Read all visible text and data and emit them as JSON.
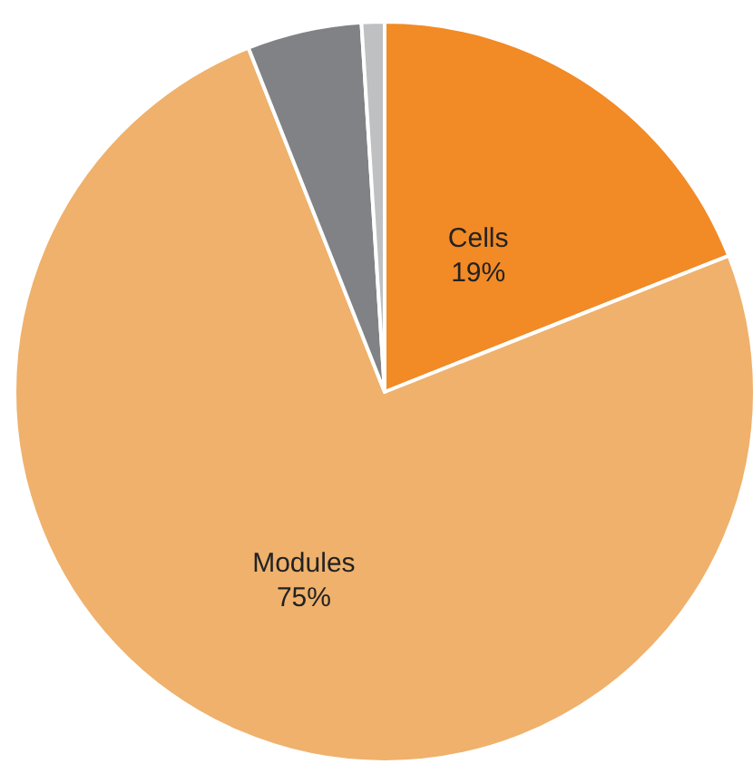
{
  "chart_data": {
    "type": "pie",
    "categories": [
      "Cells",
      "Modules",
      null,
      null
    ],
    "values": [
      19,
      75,
      5,
      1
    ],
    "colors": [
      "#f28a26",
      "#efb16c",
      "#808285",
      "#bfc0c2"
    ],
    "value_labels": [
      "19%",
      "75%",
      null,
      null
    ]
  }
}
